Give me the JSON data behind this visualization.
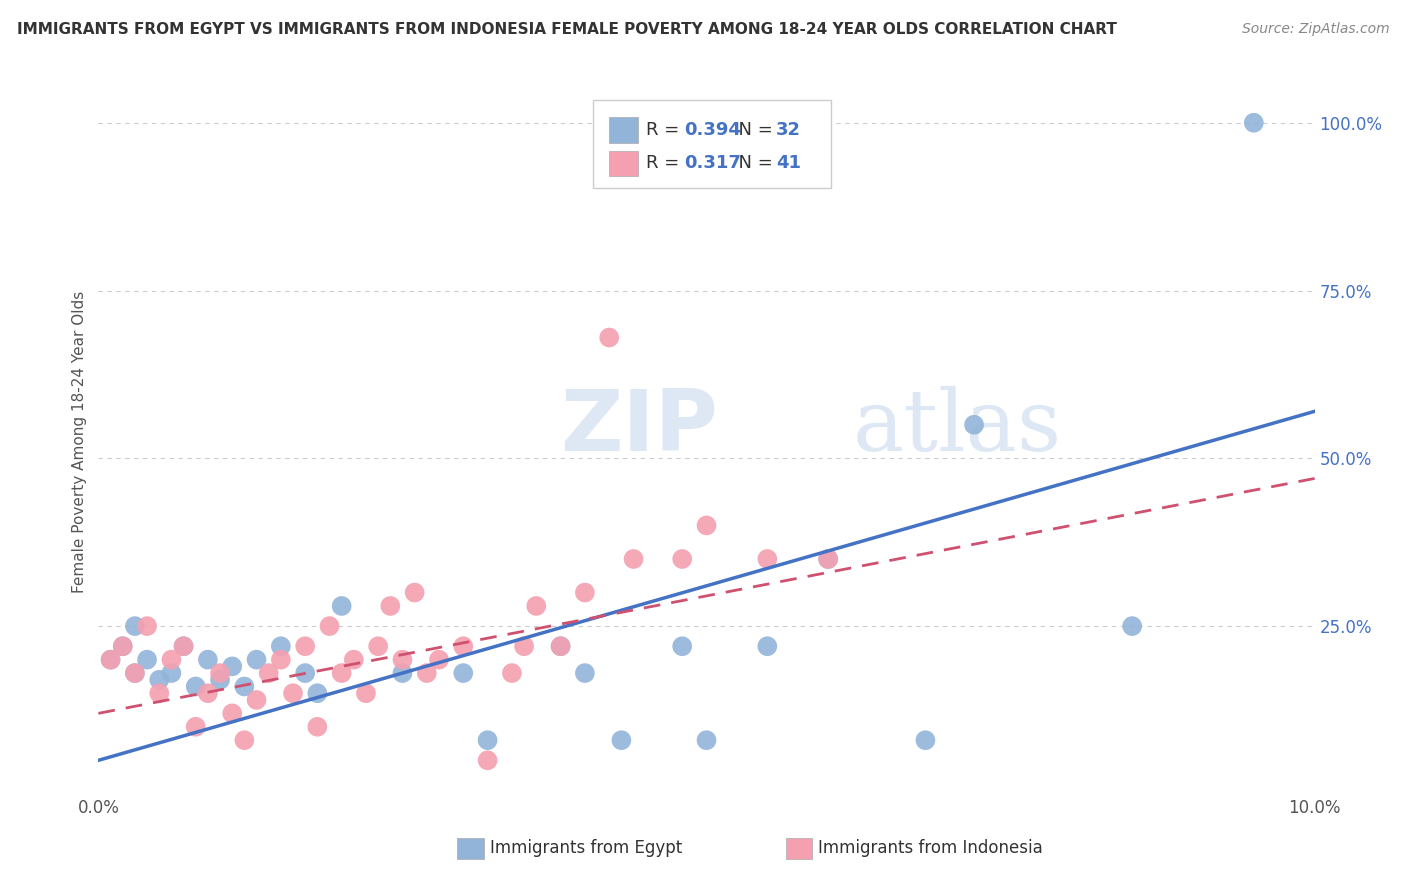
{
  "title": "IMMIGRANTS FROM EGYPT VS IMMIGRANTS FROM INDONESIA FEMALE POVERTY AMONG 18-24 YEAR OLDS CORRELATION CHART",
  "source": "Source: ZipAtlas.com",
  "ylabel": "Female Poverty Among 18-24 Year Olds",
  "legend_label_egypt": "Immigrants from Egypt",
  "legend_label_indonesia": "Immigrants from Indonesia",
  "color_egypt": "#92b4d9",
  "color_indonesia": "#f4a0b0",
  "color_blue": "#4472c4",
  "color_pink": "#d05070",
  "color_r_value": "#4472c4",
  "bg_color": "#ffffff",
  "xlim": [
    0.0,
    0.1
  ],
  "ylim": [
    0.0,
    1.05
  ],
  "egypt_x": [
    0.001,
    0.002,
    0.003,
    0.003,
    0.004,
    0.005,
    0.006,
    0.007,
    0.008,
    0.009,
    0.01,
    0.011,
    0.012,
    0.013,
    0.015,
    0.017,
    0.018,
    0.02,
    0.025,
    0.03,
    0.032,
    0.038,
    0.04,
    0.043,
    0.048,
    0.05,
    0.055,
    0.06,
    0.068,
    0.072,
    0.085,
    0.095
  ],
  "egypt_y": [
    0.2,
    0.22,
    0.18,
    0.25,
    0.2,
    0.17,
    0.18,
    0.22,
    0.16,
    0.2,
    0.17,
    0.19,
    0.16,
    0.2,
    0.22,
    0.18,
    0.15,
    0.28,
    0.18,
    0.18,
    0.08,
    0.22,
    0.18,
    0.08,
    0.22,
    0.08,
    0.22,
    0.35,
    0.08,
    0.55,
    0.25,
    1.0
  ],
  "indonesia_x": [
    0.001,
    0.002,
    0.003,
    0.004,
    0.005,
    0.006,
    0.007,
    0.008,
    0.009,
    0.01,
    0.011,
    0.012,
    0.013,
    0.014,
    0.015,
    0.016,
    0.017,
    0.018,
    0.019,
    0.02,
    0.021,
    0.022,
    0.023,
    0.024,
    0.025,
    0.026,
    0.027,
    0.028,
    0.03,
    0.032,
    0.034,
    0.035,
    0.036,
    0.038,
    0.04,
    0.042,
    0.044,
    0.048,
    0.05,
    0.055,
    0.06
  ],
  "indonesia_y": [
    0.2,
    0.22,
    0.18,
    0.25,
    0.15,
    0.2,
    0.22,
    0.1,
    0.15,
    0.18,
    0.12,
    0.08,
    0.14,
    0.18,
    0.2,
    0.15,
    0.22,
    0.1,
    0.25,
    0.18,
    0.2,
    0.15,
    0.22,
    0.28,
    0.2,
    0.3,
    0.18,
    0.2,
    0.22,
    0.05,
    0.18,
    0.22,
    0.28,
    0.22,
    0.3,
    0.68,
    0.35,
    0.35,
    0.4,
    0.35,
    0.35
  ],
  "egypt_line_x0": 0.0,
  "egypt_line_y0": 0.05,
  "egypt_line_x1": 0.1,
  "egypt_line_y1": 0.57,
  "indo_line_x0": 0.0,
  "indo_line_y0": 0.12,
  "indo_line_x1": 0.1,
  "indo_line_y1": 0.47
}
